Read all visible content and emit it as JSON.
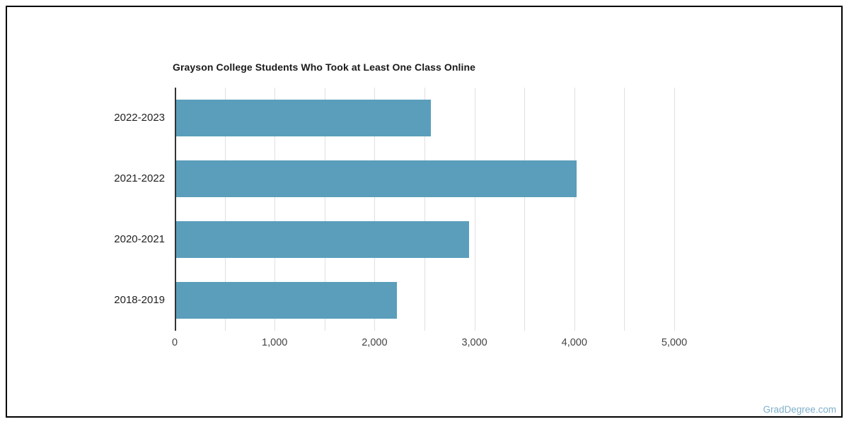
{
  "chart_data": {
    "type": "bar",
    "orientation": "horizontal",
    "title": "Grayson College Students Who Took at Least One Class Online",
    "categories": [
      "2022-2023",
      "2021-2022",
      "2020-2021",
      "2018-2019"
    ],
    "values": [
      2550,
      4010,
      2930,
      2210
    ],
    "xlabel": "",
    "ylabel": "",
    "xlim": [
      0,
      5000
    ],
    "x_tick_values": [
      0,
      1000,
      2000,
      3000,
      4000,
      5000
    ],
    "x_tick_labels": [
      "0",
      "1,000",
      "2,000",
      "3,000",
      "4,000",
      "5,000"
    ],
    "gridline_step": 500,
    "grid": true,
    "legend_position": "none",
    "bar_color": "#5A9EBB",
    "axis_color": "#333333",
    "gridline_color": "#e0e0e0",
    "title_color": "#1a1a1a",
    "tick_label_color": "#444444",
    "category_label_color": "#1f1f1f"
  },
  "watermark": {
    "text": "GradDegree.com",
    "color": "#7FB0CB"
  }
}
